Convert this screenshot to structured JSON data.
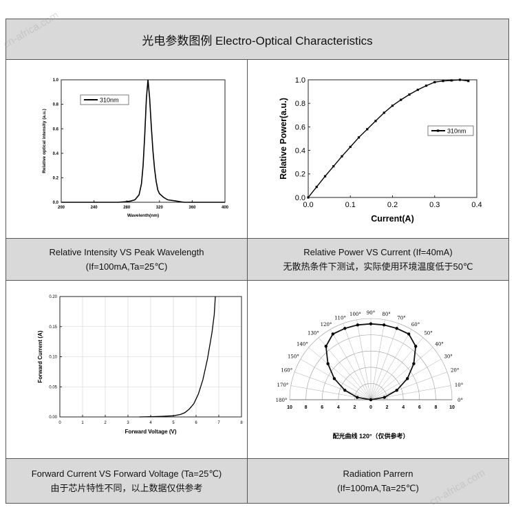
{
  "header": {
    "title": "光电参数图例 Electro-Optical Characteristics"
  },
  "captions": {
    "c1": {
      "line1": "Relative Intensity VS Peak Wavelength",
      "line2": "(If=100mA,Ta=25℃)"
    },
    "c2": {
      "line1": "Relative Power VS Current (If=40mA)",
      "line2": "无散热条件下测试，实际使用环境温度低于50℃"
    },
    "c3": {
      "line1": "Forward Current VS Forward Voltage (Ta=25℃)",
      "line2": "由于芯片特性不同，以上数据仅供参考"
    },
    "c4": {
      "line1": "Radiation Parrern",
      "line2": "(If=100mA,Ta=25℃)"
    }
  },
  "watermarks": {
    "top_left": "cn-africa.com",
    "bottom_right": "cn-africa.com"
  },
  "colors": {
    "header_bg": "#d9d9d9",
    "caption_bg": "#d9d9d9",
    "series": "#000000"
  },
  "chart_data": [
    {
      "id": "spectrum",
      "type": "line",
      "xlabel": "Wavelenth(nm)",
      "ylabel": "Relative optical intensity (a.u.)",
      "xlim": [
        200,
        400
      ],
      "ylim": [
        0,
        1.0
      ],
      "xticks": [
        "200",
        "240",
        "280",
        "320",
        "360",
        "400"
      ],
      "yticks": [
        "0.0",
        "0.2",
        "0.4",
        "0.6",
        "0.8",
        "1.0"
      ],
      "legend": "310nm",
      "series": [
        {
          "name": "310nm",
          "x": [
            200,
            270,
            280,
            285,
            290,
            295,
            298,
            300,
            302,
            304,
            306,
            308,
            310,
            312,
            314,
            316,
            318,
            320,
            325,
            330,
            340,
            350,
            400
          ],
          "y": [
            0,
            0,
            0.005,
            0.01,
            0.02,
            0.06,
            0.15,
            0.3,
            0.55,
            0.85,
            1.0,
            0.85,
            0.62,
            0.42,
            0.27,
            0.17,
            0.1,
            0.07,
            0.04,
            0.02,
            0.01,
            0,
            0
          ]
        }
      ]
    },
    {
      "id": "power",
      "type": "line",
      "xlabel": "Current(A)",
      "ylabel": "Relative Power(a.u.)",
      "xlim": [
        0,
        0.4
      ],
      "ylim": [
        0,
        1.0
      ],
      "xticks": [
        "0.0",
        "0.1",
        "0.2",
        "0.3",
        "0.4"
      ],
      "yticks": [
        "0.0",
        "0.2",
        "0.4",
        "0.6",
        "0.8",
        "1.0"
      ],
      "legend": "310nm",
      "series": [
        {
          "name": "310nm",
          "x": [
            0,
            0.02,
            0.04,
            0.06,
            0.08,
            0.1,
            0.12,
            0.14,
            0.16,
            0.18,
            0.2,
            0.22,
            0.24,
            0.26,
            0.28,
            0.3,
            0.32,
            0.34,
            0.36,
            0.38
          ],
          "y": [
            0,
            0.09,
            0.18,
            0.265,
            0.35,
            0.43,
            0.51,
            0.58,
            0.65,
            0.72,
            0.78,
            0.83,
            0.875,
            0.915,
            0.95,
            0.98,
            0.99,
            0.995,
            1.0,
            0.99
          ]
        }
      ]
    },
    {
      "id": "iv",
      "type": "line",
      "xlabel": "Forward Voltage (V)",
      "ylabel": "Forward Current (A)",
      "xlim": [
        0,
        8
      ],
      "ylim": [
        0,
        0.2
      ],
      "xticks": [
        "0",
        "1",
        "2",
        "3",
        "4",
        "5",
        "6",
        "7",
        "8"
      ],
      "yticks": [
        "0.00",
        "0.05",
        "0.10",
        "0.15",
        "0.20"
      ],
      "series": [
        {
          "name": "",
          "x": [
            3.5,
            4.0,
            4.5,
            5.0,
            5.3,
            5.5,
            5.7,
            5.9,
            6.1,
            6.3,
            6.5,
            6.7,
            6.8,
            6.85
          ],
          "y": [
            0,
            0.0005,
            0.001,
            0.002,
            0.004,
            0.007,
            0.013,
            0.022,
            0.038,
            0.062,
            0.096,
            0.14,
            0.17,
            0.2
          ]
        }
      ]
    },
    {
      "id": "radiation",
      "type": "polar",
      "caption": "配光曲线 120°（仅供参考）",
      "angle_labels": [
        "0°",
        "10°",
        "20°",
        "30°",
        "40°",
        "50°",
        "60°",
        "70°",
        "80°",
        "90°",
        "100°",
        "110°",
        "120°",
        "130°",
        "140°",
        "150°",
        "160°",
        "170°",
        "180°"
      ],
      "radial_ticks": [
        "10",
        "8",
        "6",
        "4",
        "2",
        "0",
        "2",
        "4",
        "6",
        "8",
        "10"
      ],
      "rmax": 10,
      "series": [
        {
          "name": "",
          "angle": [
            0,
            10,
            20,
            30,
            40,
            50,
            60,
            70,
            80,
            90,
            100,
            110,
            120,
            130,
            140,
            150,
            160,
            170,
            180
          ],
          "r": [
            0,
            1.7,
            3.4,
            5.2,
            6.9,
            8.6,
            9.35,
            9.35,
            9.35,
            9.35,
            9.35,
            9.35,
            9.35,
            8.6,
            6.9,
            5.2,
            3.4,
            1.7,
            0
          ]
        }
      ]
    }
  ]
}
